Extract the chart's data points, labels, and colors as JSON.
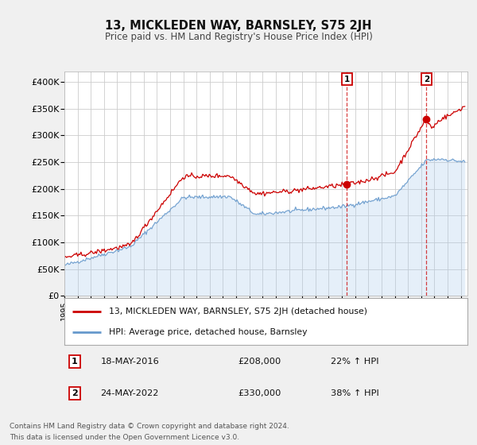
{
  "title": "13, MICKLEDEN WAY, BARNSLEY, S75 2JH",
  "subtitle": "Price paid vs. HM Land Registry's House Price Index (HPI)",
  "ylim": [
    0,
    420000
  ],
  "yticks": [
    0,
    50000,
    100000,
    150000,
    200000,
    250000,
    300000,
    350000,
    400000
  ],
  "ytick_labels": [
    "£0",
    "£50K",
    "£100K",
    "£150K",
    "£200K",
    "£250K",
    "£300K",
    "£350K",
    "£400K"
  ],
  "xlim_start": 1995.0,
  "xlim_end": 2025.5,
  "xtick_years": [
    1995,
    1996,
    1997,
    1998,
    1999,
    2000,
    2001,
    2002,
    2003,
    2004,
    2005,
    2006,
    2007,
    2008,
    2009,
    2010,
    2011,
    2012,
    2013,
    2014,
    2015,
    2016,
    2017,
    2018,
    2019,
    2020,
    2021,
    2022,
    2023,
    2024,
    2025
  ],
  "property_color": "#cc0000",
  "hpi_fill_color": "#aaccee",
  "hpi_line_color": "#6699cc",
  "marker1_date": 2016.38,
  "marker1_value": 208000,
  "marker2_date": 2022.39,
  "marker2_value": 330000,
  "legend_property": "13, MICKLEDEN WAY, BARNSLEY, S75 2JH (detached house)",
  "legend_hpi": "HPI: Average price, detached house, Barnsley",
  "annotation1_date": "18-MAY-2016",
  "annotation1_price": "£208,000",
  "annotation1_hpi": "22% ↑ HPI",
  "annotation2_date": "24-MAY-2022",
  "annotation2_price": "£330,000",
  "annotation2_hpi": "38% ↑ HPI",
  "footer1": "Contains HM Land Registry data © Crown copyright and database right 2024.",
  "footer2": "This data is licensed under the Open Government Licence v3.0.",
  "background_color": "#f0f0f0",
  "plot_bg_color": "#ffffff",
  "grid_color": "#cccccc"
}
